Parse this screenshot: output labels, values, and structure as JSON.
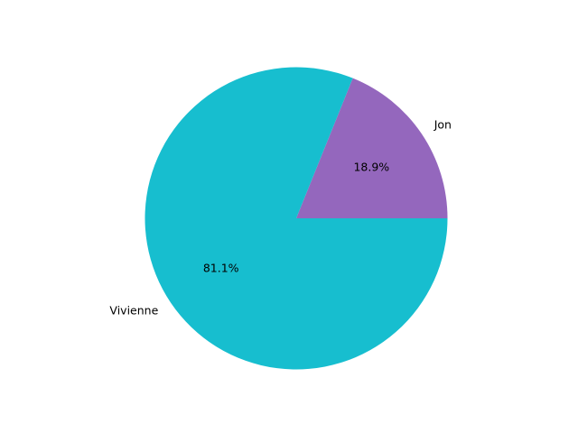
{
  "chart_data": {
    "type": "pie",
    "labels": [
      "Jon",
      "Vivienne"
    ],
    "values": [
      18.9,
      81.1
    ],
    "pct_labels": [
      "18.9%",
      "81.1%"
    ],
    "colors": [
      "#9467bd",
      "#17becf"
    ],
    "start_angle_deg": 0,
    "direction": "counterclockwise"
  }
}
